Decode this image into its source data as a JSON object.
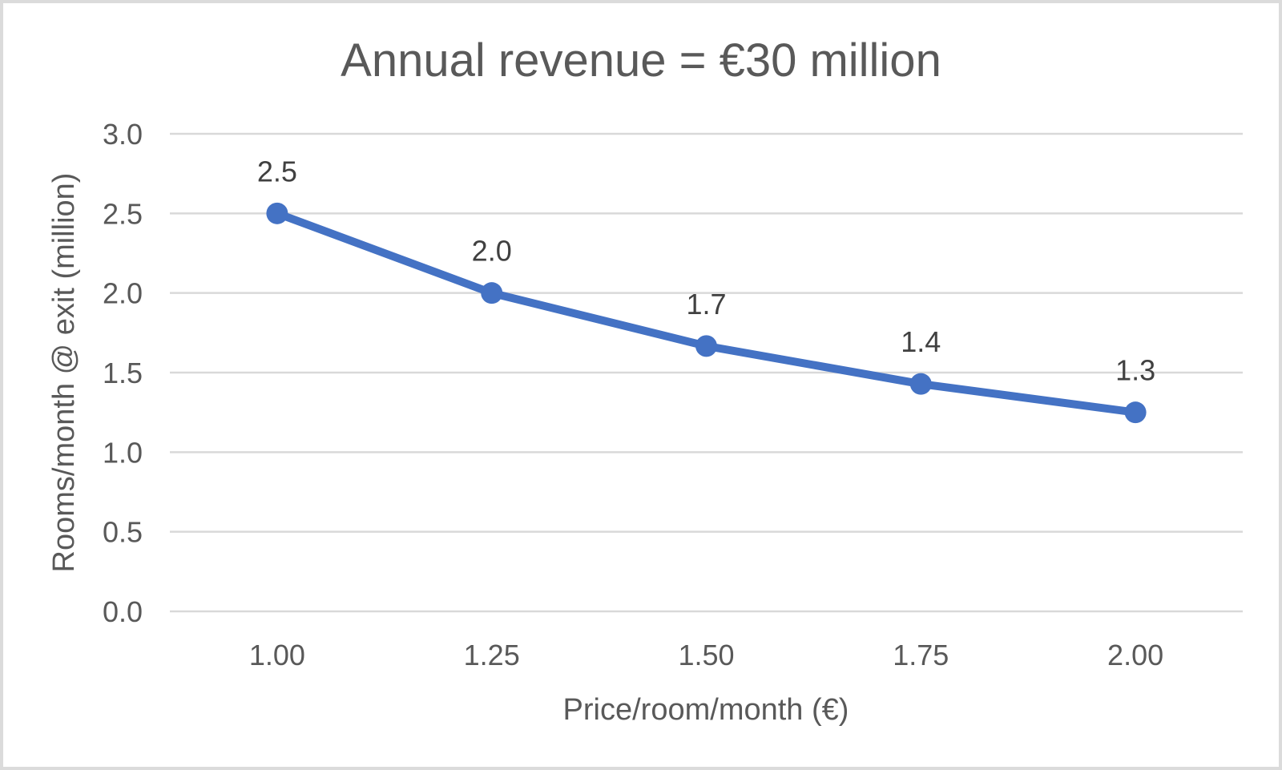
{
  "chart_data": {
    "type": "line",
    "title": "Annual revenue = €30 million",
    "xlabel": "Price/room/month (€)",
    "ylabel": "Rooms/month @ exit (million)",
    "categories": [
      "1.00",
      "1.25",
      "1.50",
      "1.75",
      "2.00"
    ],
    "x": [
      1.0,
      1.25,
      1.5,
      1.75,
      2.0
    ],
    "series": [
      {
        "name": "Rooms/month @ exit",
        "values": [
          2.5,
          2.0,
          1.6667,
          1.4286,
          1.25
        ],
        "point_labels": [
          "2.5",
          "2.0",
          "1.7",
          "1.4",
          "1.3"
        ]
      }
    ],
    "ylim": [
      0.0,
      3.0
    ],
    "y_ticks": [
      "0.0",
      "0.5",
      "1.0",
      "1.5",
      "2.0",
      "2.5",
      "3.0"
    ],
    "grid": true,
    "legend": "none",
    "colors": {
      "line": "#4472C4",
      "marker": "#4472C4",
      "gridline": "#d9d9d9",
      "axis_text": "#595959",
      "title_text": "#595959",
      "data_label_text": "#404040",
      "background": "#ffffff",
      "frame_border": "#dbdbdb"
    }
  }
}
